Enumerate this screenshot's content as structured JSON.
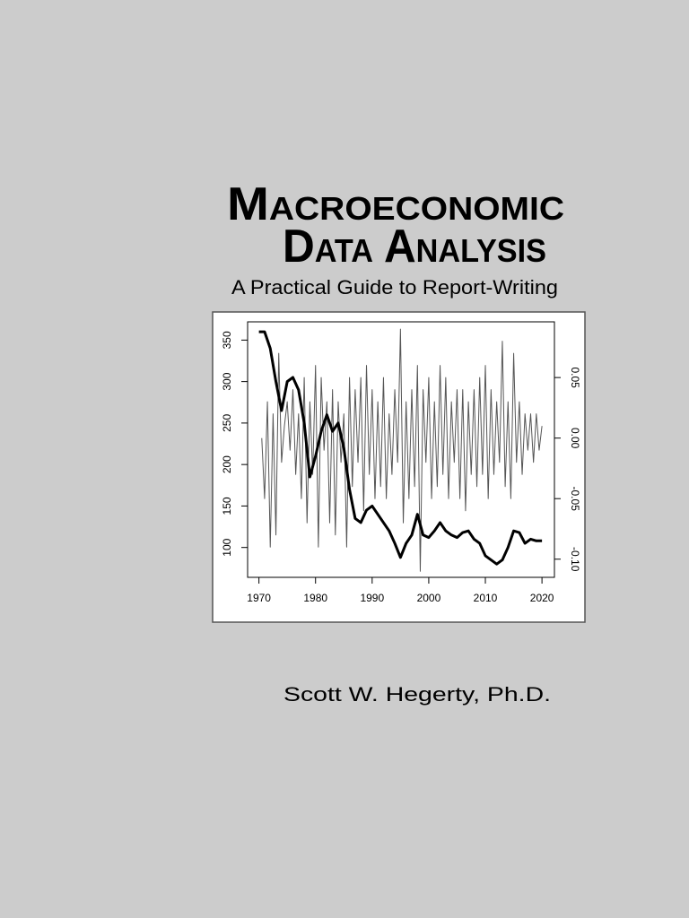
{
  "cover": {
    "title_line1": "Macroeconomic",
    "title_line2": "Data Analysis",
    "subtitle": "A Practical Guide to Report-Writing",
    "author": "Scott W. Hegerty, Ph.D."
  },
  "chart_data": {
    "type": "line",
    "xlim": [
      1968,
      2022.2
    ],
    "xticks": [
      1970,
      1980,
      1990,
      2000,
      2010,
      2020
    ],
    "ylim": [
      64,
      372
    ],
    "yticks": [
      100,
      150,
      200,
      250,
      300,
      350
    ],
    "y2lim": [
      -0.115,
      0.096
    ],
    "y2ticks": [
      {
        "value": -0.1,
        "label": "-0.10"
      },
      -0.05,
      {
        "value": 0,
        "label": "0.00"
      },
      0.05
    ],
    "series": [
      {
        "color": "#555555",
        "axis": "y2",
        "width": 1,
        "x": [
          1970.5,
          1971,
          1971.5,
          1972,
          1972.5,
          1973,
          1973.5,
          1974,
          1974.5,
          1975,
          1975.5,
          1976,
          1976.5,
          1977,
          1977.5,
          1978,
          1978.5,
          1979,
          1979.5,
          1980,
          1980.5,
          1981,
          1981.5,
          1982,
          1982.5,
          1983,
          1983.5,
          1984,
          1984.5,
          1985,
          1985.5,
          1986,
          1986.5,
          1987,
          1987.5,
          1988,
          1988.5,
          1989,
          1989.5,
          1990,
          1990.5,
          1991,
          1991.5,
          1992,
          1992.5,
          1993,
          1993.5,
          1994,
          1994.5,
          1995,
          1995.5,
          1996,
          1996.5,
          1997,
          1997.5,
          1998,
          1998.5,
          1999,
          1999.5,
          2000,
          2000.5,
          2001,
          2001.5,
          2002,
          2002.5,
          2003,
          2003.5,
          2004,
          2004.5,
          2005,
          2005.5,
          2006,
          2006.5,
          2007,
          2007.5,
          2008,
          2008.5,
          2009,
          2009.5,
          2010,
          2010.5,
          2011,
          2011.5,
          2012,
          2012.5,
          2013,
          2013.5,
          2014,
          2014.5,
          2015,
          2015.5,
          2016,
          2016.5,
          2017,
          2017.5,
          2018,
          2018.5,
          2019,
          2019.5,
          2020
        ],
        "values": [
          0.0,
          -0.05,
          0.03,
          -0.09,
          0.02,
          -0.08,
          0.07,
          -0.02,
          0.01,
          0.03,
          -0.01,
          0.04,
          -0.03,
          0.02,
          -0.05,
          0.05,
          -0.07,
          0.03,
          -0.03,
          0.06,
          -0.09,
          0.05,
          -0.01,
          0.03,
          -0.07,
          0.04,
          -0.08,
          0.03,
          -0.02,
          0.02,
          -0.09,
          0.05,
          -0.04,
          0.04,
          -0.02,
          0.05,
          -0.06,
          0.06,
          -0.03,
          0.04,
          -0.05,
          0.03,
          -0.04,
          0.05,
          -0.05,
          0.02,
          -0.03,
          0.04,
          -0.02,
          0.09,
          -0.07,
          0.03,
          -0.05,
          0.04,
          -0.04,
          0.06,
          -0.11,
          0.04,
          -0.02,
          0.05,
          -0.05,
          0.03,
          -0.04,
          0.06,
          -0.03,
          0.05,
          -0.05,
          0.03,
          -0.02,
          0.04,
          -0.05,
          0.04,
          -0.06,
          0.03,
          -0.03,
          0.04,
          -0.04,
          0.05,
          -0.03,
          0.06,
          -0.05,
          0.04,
          -0.03,
          0.03,
          -0.02,
          0.08,
          -0.04,
          0.03,
          -0.05,
          0.07,
          -0.02,
          0.03,
          -0.03,
          0.02,
          -0.01,
          0.02,
          -0.02,
          0.02,
          -0.01,
          0.01
        ]
      },
      {
        "color": "#000000",
        "width": 3,
        "x": [
          1970,
          1971,
          1972,
          1973,
          1974,
          1975,
          1976,
          1977,
          1978,
          1979,
          1980,
          1981,
          1982,
          1983,
          1984,
          1985,
          1986,
          1987,
          1988,
          1989,
          1990,
          1991,
          1992,
          1993,
          1994,
          1995,
          1996,
          1997,
          1998,
          1999,
          2000,
          2001,
          2002,
          2003,
          2004,
          2005,
          2006,
          2007,
          2008,
          2009,
          2010,
          2011,
          2012,
          2013,
          2014,
          2015,
          2016,
          2017,
          2018,
          2019,
          2020
        ],
        "values": [
          360,
          360,
          340,
          300,
          265,
          300,
          305,
          290,
          250,
          185,
          210,
          240,
          260,
          240,
          250,
          220,
          170,
          135,
          130,
          145,
          150,
          140,
          130,
          120,
          105,
          88,
          105,
          115,
          140,
          115,
          112,
          120,
          130,
          120,
          115,
          112,
          118,
          120,
          110,
          105,
          90,
          85,
          80,
          85,
          100,
          120,
          118,
          105,
          110,
          108,
          108
        ]
      }
    ]
  }
}
